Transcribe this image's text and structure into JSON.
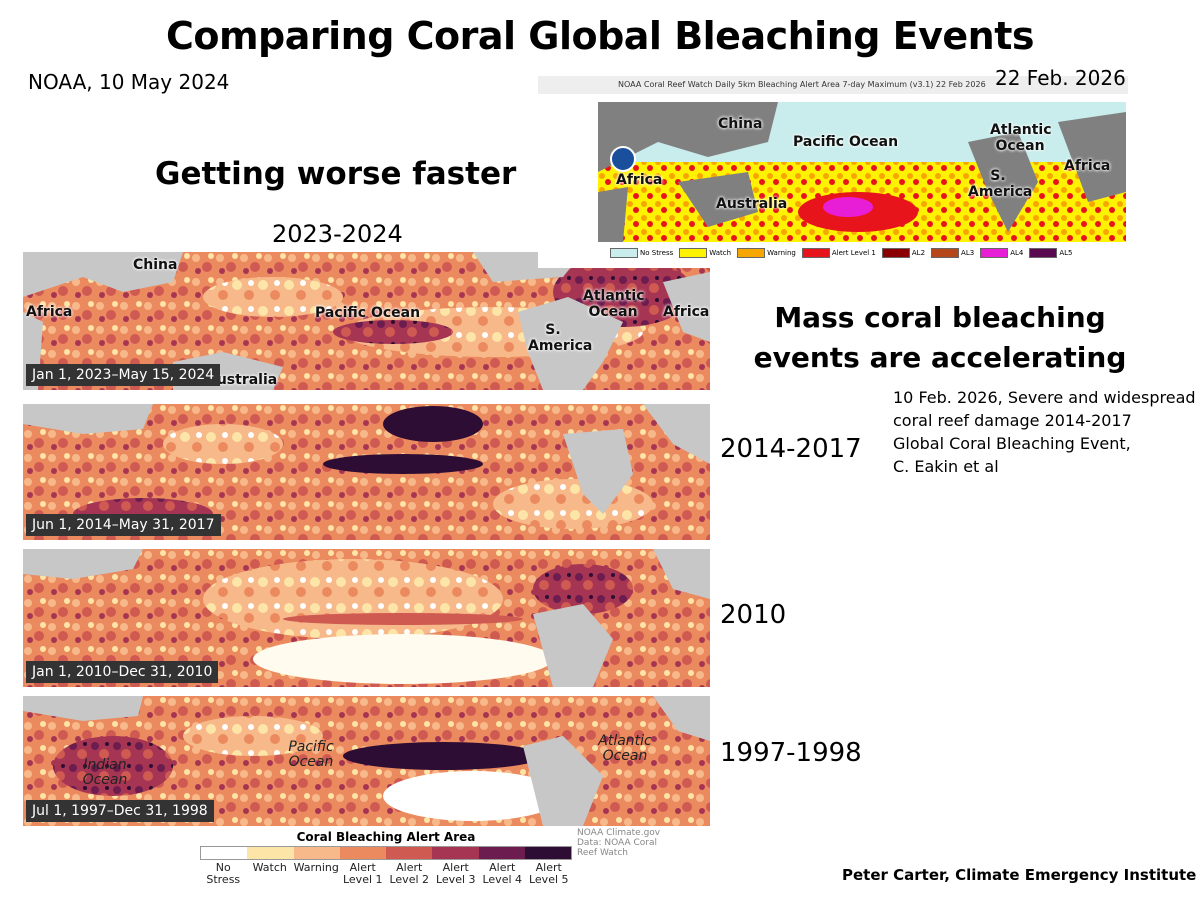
{
  "title": "Comparing Coral Global Bleaching Events",
  "source_date": "NOAA, 10 May 2024",
  "subtitle": "Getting worse faster",
  "period_main": "2023-2024",
  "accel_line1": "Mass coral bleaching",
  "accel_line2": "events are accelerating",
  "citation": [
    "10 Feb. 2026, Severe and widespread",
    "coral reef damage  2014-2017",
    "Global Coral Bleaching Event,",
    "C. Eakin et al"
  ],
  "credit": "Peter Carter, Climate Emergency Institute",
  "maps": [
    {
      "date": "Jan 1, 2023–May 15, 2024",
      "year_label": "",
      "labels": {
        "china": "China",
        "africa_w": "Africa",
        "pacific": "Pacific Ocean",
        "atlantic": "Atlantic Ocean",
        "africa_e": "Africa",
        "s_america": "S. America",
        "australia": "Australia"
      }
    },
    {
      "date": "Jun 1, 2014–May 31, 2017",
      "year_label": "2014-2017"
    },
    {
      "date": "Jan 1, 2010–Dec 31, 2010",
      "year_label": "2010"
    },
    {
      "date": "Jul 1, 1997–Dec 31, 1998",
      "year_label": "1997-1998",
      "labels": {
        "indian": "Indian Ocean",
        "pacific": "Pacific Ocean",
        "atlantic": "Atlantic Ocean"
      }
    }
  ],
  "legend": {
    "title": "Coral Bleaching Alert Area",
    "items": [
      {
        "label": "No Stress",
        "color": "#ffffff"
      },
      {
        "label": "Watch",
        "color": "#fde5a8"
      },
      {
        "label": "Warning",
        "color": "#f7b98a"
      },
      {
        "label": "Alert Level 1",
        "color": "#ec8a5f"
      },
      {
        "label": "Alert Level 2",
        "color": "#cf5a51"
      },
      {
        "label": "Alert Level 3",
        "color": "#a63553"
      },
      {
        "label": "Alert Level 4",
        "color": "#6d1c4f"
      },
      {
        "label": "Alert Level 5",
        "color": "#2d0d33"
      }
    ],
    "attribution": [
      "NOAA Climate.gov",
      "Data: NOAA Coral",
      "Reef Watch"
    ]
  },
  "inset": {
    "header": "NOAA Coral Reef Watch Daily 5km Bleaching Alert Area 7-day Maximum  (v3.1)   22 Feb 2026",
    "date": "22 Feb. 2026",
    "labels": {
      "china": "China",
      "pacific": "Pacific Ocean",
      "atlantic": "Atlantic Ocean",
      "africa_e": "Africa",
      "africa_w": "Africa",
      "australia": "Australia",
      "s_america": "S. America"
    },
    "legend": [
      {
        "label": "No Stress",
        "color": "#c9ecec"
      },
      {
        "label": "Watch",
        "color": "#fff200"
      },
      {
        "label": "Warning",
        "color": "#f7a600"
      },
      {
        "label": "Alert Level 1",
        "color": "#e8141c"
      },
      {
        "label": "AL2",
        "color": "#8b0000"
      },
      {
        "label": "AL3",
        "color": "#b5471b"
      },
      {
        "label": "AL4",
        "color": "#e81ed7"
      },
      {
        "label": "AL5",
        "color": "#5a0a50"
      }
    ]
  }
}
